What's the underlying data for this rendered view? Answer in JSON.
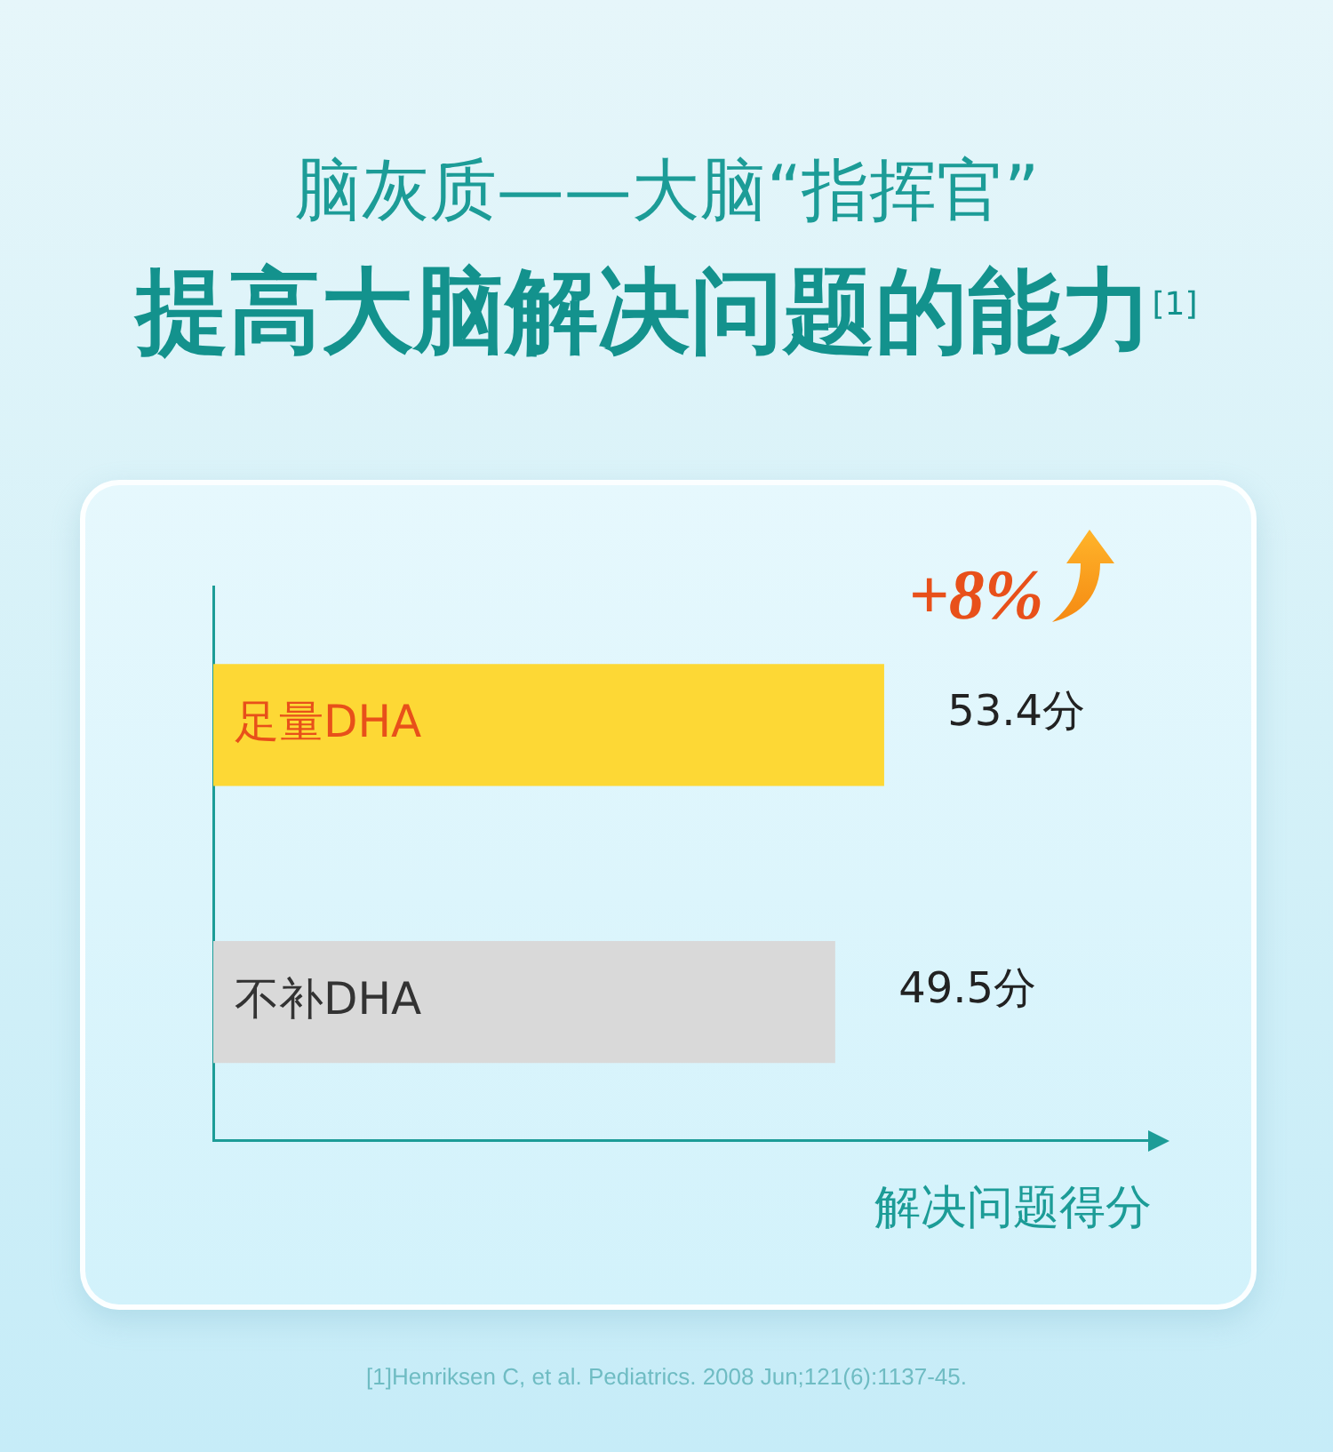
{
  "chart_data": {
    "type": "bar",
    "orientation": "horizontal",
    "title": "脑灰质——大脑“指挥官”",
    "subtitle": "提高大脑解决问题的能力$^{[1]}$",
    "xlabel": "解决问题得分",
    "categories": [
      "足量DHA",
      "不补DHA"
    ],
    "values": [
      53.4,
      49.5
    ],
    "colors": [
      "#fdd835",
      "#d9d9d9"
    ],
    "value_labels": [
      "53.4分",
      "49.5分"
    ],
    "tick_labels": "y",
    "grid": false,
    "legend": false,
    "annotations": [
      {
        "text": "+8%",
        "x": 53.4,
        "y": "足量DHA"
      },
      "[1]Henriksen C, et al. Pediatrics. 2008 Jun;121(6):1137-45."
    ]
  }
}
